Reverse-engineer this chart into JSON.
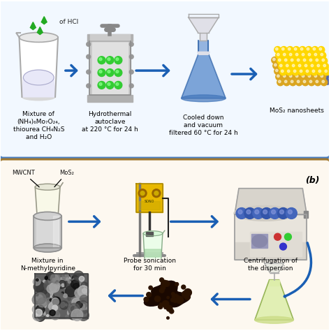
{
  "bg_color": "#ffffff",
  "panel_a_border_color": "#4a7fc1",
  "panel_b_border_color": "#a07830",
  "arrow_color": "#1a5fb4",
  "panel_a_bg": "#f2f8ff",
  "panel_b_bg": "#fdf8f0",
  "panel_a_labels": [
    "Mixture of\n(NH₄)₆Mo₇O₂₄,\nthiourea CH₄N₂S\nand H₂O",
    "Hydrothermal\nautoclave\nat 220 °C for 24 h",
    "Cooled down\nand vacuum\nfiltered 60 °C for 24 h",
    "MoS₂ nanosheets"
  ],
  "panel_a_hcl": "of HCl",
  "panel_b_labels": [
    "Mixture in\nN-methylpyridine",
    "Probe sonication\nfor 30 min",
    "Centrifugation of\nthe dispersion"
  ],
  "panel_b_label_mwcnt": "MWCNT",
  "panel_b_label_mos2": "MoS₂",
  "panel_b_marker": "(b)",
  "label_fontsize": 6.5,
  "small_fontsize": 6.0
}
